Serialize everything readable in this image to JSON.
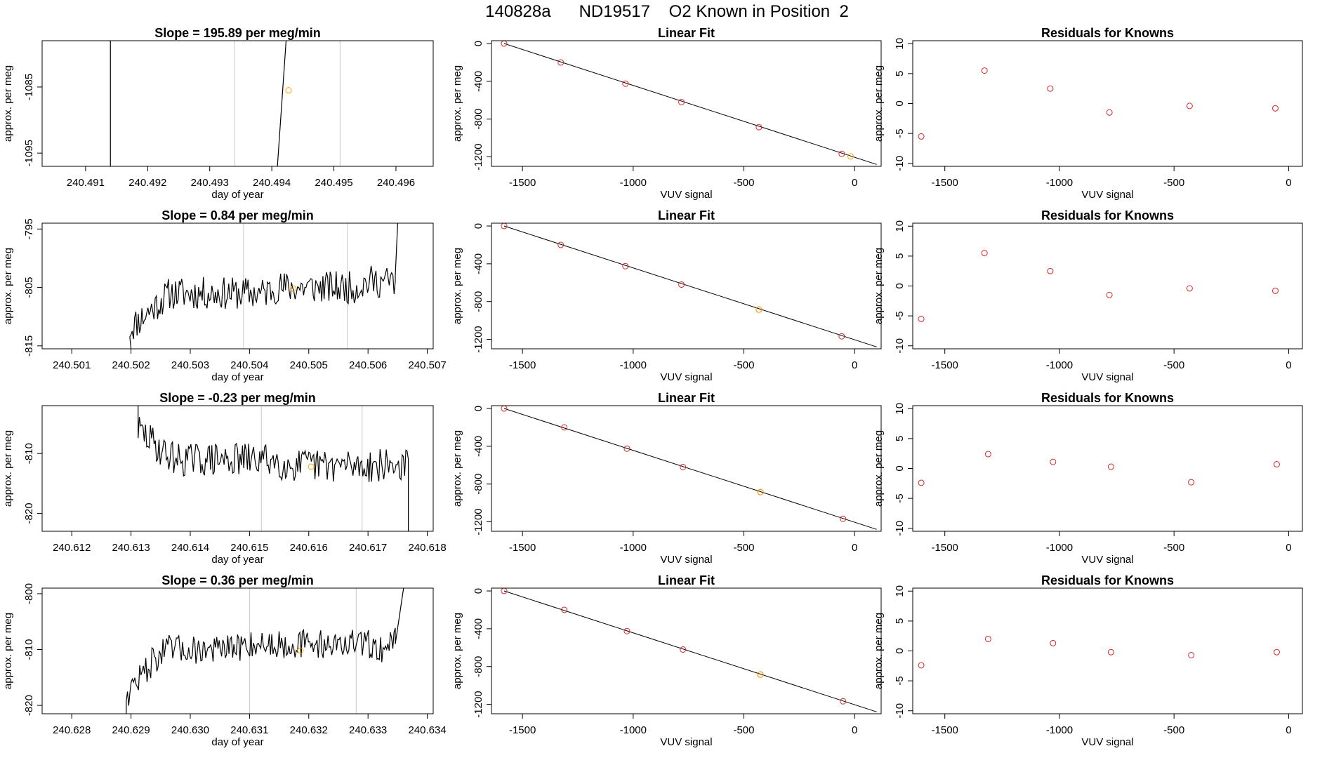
{
  "figure": {
    "title": "140828a      ND19517    O2 Known in Position  2"
  },
  "chart_data": [
    {
      "type": "line",
      "panel": "time-series",
      "row": 1,
      "title": "Slope =  195.89  per meg/min",
      "xlabel": "day of year",
      "ylabel": "approx. per meg",
      "xlim": [
        240.4903,
        240.4966
      ],
      "ylim": [
        -1097,
        -1078
      ],
      "xticks": [
        240.491,
        240.492,
        240.493,
        240.494,
        240.495,
        240.496
      ],
      "xtick_labels": [
        "240.491",
        "240.492",
        "240.493",
        "240.494",
        "240.495",
        "240.496"
      ],
      "yticks": [
        -1095,
        -1085
      ],
      "ytick_labels": [
        "-1095",
        "-1085"
      ],
      "vlines_black": [
        240.4914
      ],
      "vlines_gray": [
        240.4934,
        240.4951
      ],
      "line": [
        [
          240.49409,
          -1097
        ],
        [
          240.49423,
          -1078
        ]
      ],
      "marker": {
        "x": 240.49427,
        "y": -1085.5
      }
    },
    {
      "type": "line",
      "panel": "time-series",
      "row": 2,
      "title": "Slope =  0.84  per meg/min",
      "xlabel": "day of year",
      "ylabel": "approx. per meg",
      "xlim": [
        240.5005,
        240.5071
      ],
      "ylim": [
        -815.5,
        -794
      ],
      "xticks": [
        240.501,
        240.502,
        240.503,
        240.504,
        240.505,
        240.506,
        240.507
      ],
      "xtick_labels": [
        "240.501",
        "240.502",
        "240.503",
        "240.504",
        "240.505",
        "240.506",
        "240.507"
      ],
      "yticks": [
        -815,
        -805,
        -795
      ],
      "ytick_labels": [
        "-815",
        "-805",
        "-795"
      ],
      "vlines_black": [],
      "vlines_gray": [
        240.5039,
        240.50565
      ],
      "series": {
        "x_start": 240.50198,
        "x_end": 240.50646,
        "levels": [
          -812,
          -810,
          -808,
          -806,
          -806,
          -806,
          -806,
          -806,
          -806,
          -806,
          -806,
          -805,
          -805,
          -805,
          -805,
          -805,
          -805,
          -805,
          -804,
          -804,
          -804
        ],
        "amp": 2.8,
        "seed": 11
      },
      "line_ends": [
        [
          240.502,
          -815.5
        ],
        [
          240.50646,
          -803
        ],
        [
          240.5065,
          -794
        ]
      ],
      "marker": {
        "x": 240.50474,
        "y": -805.2
      }
    },
    {
      "type": "line",
      "panel": "time-series",
      "row": 3,
      "title": "Slope =  -0.23  per meg/min",
      "xlabel": "day of year",
      "ylabel": "approx. per meg",
      "xlim": [
        240.6115,
        240.6181
      ],
      "ylim": [
        -823,
        -802
      ],
      "xticks": [
        240.612,
        240.613,
        240.614,
        240.615,
        240.616,
        240.617,
        240.618
      ],
      "xtick_labels": [
        "240.612",
        "240.613",
        "240.614",
        "240.615",
        "240.616",
        "240.617",
        "240.618"
      ],
      "yticks": [
        -820,
        -810
      ],
      "ytick_labels": [
        "-820",
        "-810"
      ],
      "vlines_black": [],
      "vlines_gray": [
        240.6152,
        240.6169
      ],
      "series": {
        "x_start": 240.61312,
        "x_end": 240.61768,
        "levels": [
          -806,
          -808,
          -810,
          -811,
          -811,
          -811,
          -811,
          -811,
          -811,
          -811,
          -811,
          -812,
          -812,
          -812,
          -812,
          -812,
          -812,
          -812,
          -812,
          -812,
          -812
        ],
        "amp": 2.8,
        "seed": 29
      },
      "line_ends": [
        [
          240.61312,
          -802
        ],
        [
          240.61768,
          -823
        ]
      ],
      "marker": {
        "x": 240.61604,
        "y": -812.2
      }
    },
    {
      "type": "line",
      "panel": "time-series",
      "row": 4,
      "title": "Slope =  0.36  per meg/min",
      "xlabel": "day of year",
      "ylabel": "approx. per meg",
      "xlim": [
        240.6275,
        240.6341
      ],
      "ylim": [
        -821.5,
        -799
      ],
      "xticks": [
        240.628,
        240.629,
        240.63,
        240.631,
        240.632,
        240.633,
        240.634
      ],
      "xtick_labels": [
        "240.628",
        "240.629",
        "240.630",
        "240.631",
        "240.632",
        "240.633",
        "240.634"
      ],
      "yticks": [
        -820,
        -810,
        -800
      ],
      "ytick_labels": [
        "-820",
        "-810",
        "-800"
      ],
      "vlines_black": [],
      "vlines_gray": [
        240.631,
        240.6328
      ],
      "series": {
        "x_start": 240.62892,
        "x_end": 240.63346,
        "levels": [
          -818,
          -815,
          -812,
          -810,
          -810,
          -810,
          -810,
          -810,
          -810,
          -809,
          -809,
          -809,
          -809,
          -809,
          -809,
          -809,
          -809,
          -809,
          -809,
          -810,
          -808
        ],
        "amp": 2.6,
        "seed": 47
      },
      "line_ends": [
        [
          240.62892,
          -821.5
        ],
        [
          240.63346,
          -809
        ],
        [
          240.6336,
          -799
        ]
      ],
      "marker": {
        "x": 240.63186,
        "y": -810.2
      }
    },
    {
      "type": "scatter",
      "panel": "linear-fit",
      "row": 1,
      "title": "Linear Fit",
      "xlabel": "VUV signal",
      "ylabel": "approx. per meg",
      "xlim": [
        -1640,
        120
      ],
      "ylim": [
        -1300,
        30
      ],
      "xticks": [
        -1500,
        -1000,
        -500,
        0
      ],
      "xtick_labels": [
        "-1500",
        "-1000",
        "-500",
        "0"
      ],
      "yticks": [
        0,
        -400,
        -800,
        -1200
      ],
      "ytick_labels": [
        "0",
        "-400",
        "-800",
        "-1200"
      ],
      "points": [
        [
          -1583,
          0
        ],
        [
          -1327,
          -200
        ],
        [
          -1035,
          -425
        ],
        [
          -782,
          -620
        ],
        [
          -432,
          -885
        ],
        [
          -58,
          -1168
        ]
      ],
      "highlight": [
        [
          -18,
          -1195
        ]
      ],
      "fit_line": [
        [
          -1583,
          0
        ],
        [
          100,
          -1280
        ]
      ]
    },
    {
      "type": "scatter",
      "panel": "linear-fit",
      "row": 2,
      "title": "Linear Fit",
      "xlabel": "VUV signal",
      "ylabel": "approx. per meg",
      "xlim": [
        -1640,
        120
      ],
      "ylim": [
        -1300,
        30
      ],
      "xticks": [
        -1500,
        -1000,
        -500,
        0
      ],
      "xtick_labels": [
        "-1500",
        "-1000",
        "-500",
        "0"
      ],
      "yticks": [
        0,
        -400,
        -800,
        -1200
      ],
      "ytick_labels": [
        "0",
        "-400",
        "-800",
        "-1200"
      ],
      "points": [
        [
          -1583,
          0
        ],
        [
          -1327,
          -200
        ],
        [
          -1035,
          -425
        ],
        [
          -782,
          -620
        ],
        [
          -432,
          -885
        ],
        [
          -58,
          -1168
        ]
      ],
      "highlight": [
        [
          -432,
          -885
        ]
      ],
      "fit_line": [
        [
          -1583,
          0
        ],
        [
          100,
          -1280
        ]
      ]
    },
    {
      "type": "scatter",
      "panel": "linear-fit",
      "row": 3,
      "title": "Linear Fit",
      "xlabel": "VUV signal",
      "ylabel": "approx. per meg",
      "xlim": [
        -1640,
        120
      ],
      "ylim": [
        -1300,
        30
      ],
      "xticks": [
        -1500,
        -1000,
        -500,
        0
      ],
      "xtick_labels": [
        "-1500",
        "-1000",
        "-500",
        "0"
      ],
      "yticks": [
        0,
        -400,
        -800,
        -1200
      ],
      "ytick_labels": [
        "0",
        "-400",
        "-800",
        "-1200"
      ],
      "points": [
        [
          -1583,
          0
        ],
        [
          -1311,
          -200
        ],
        [
          -1028,
          -425
        ],
        [
          -775,
          -620
        ],
        [
          -425,
          -885
        ],
        [
          -52,
          -1168
        ]
      ],
      "highlight": [
        [
          -425,
          -885
        ]
      ],
      "fit_line": [
        [
          -1583,
          0
        ],
        [
          100,
          -1280
        ]
      ]
    },
    {
      "type": "scatter",
      "panel": "linear-fit",
      "row": 4,
      "title": "Linear Fit",
      "xlabel": "VUV signal",
      "ylabel": "approx. per meg",
      "xlim": [
        -1640,
        120
      ],
      "ylim": [
        -1300,
        30
      ],
      "xticks": [
        -1500,
        -1000,
        -500,
        0
      ],
      "xtick_labels": [
        "-1500",
        "-1000",
        "-500",
        "0"
      ],
      "yticks": [
        0,
        -400,
        -800,
        -1200
      ],
      "ytick_labels": [
        "0",
        "-400",
        "-800",
        "-1200"
      ],
      "points": [
        [
          -1583,
          0
        ],
        [
          -1311,
          -200
        ],
        [
          -1028,
          -425
        ],
        [
          -775,
          -620
        ],
        [
          -425,
          -885
        ],
        [
          -52,
          -1168
        ]
      ],
      "highlight": [
        [
          -425,
          -885
        ]
      ],
      "fit_line": [
        [
          -1583,
          0
        ],
        [
          100,
          -1280
        ]
      ]
    },
    {
      "type": "scatter",
      "panel": "residuals",
      "row": 1,
      "title": "Residuals for Knowns",
      "xlabel": "VUV signal",
      "ylabel": "approx. per meg",
      "xlim": [
        -1640,
        60
      ],
      "ylim": [
        -10.5,
        10.5
      ],
      "xticks": [
        -1500,
        -1000,
        -500,
        0
      ],
      "xtick_labels": [
        "-1500",
        "-1000",
        "-500",
        "0"
      ],
      "yticks": [
        10,
        5,
        0,
        -5,
        -10
      ],
      "ytick_labels": [
        "10",
        "5",
        "0",
        "-5",
        "-10"
      ],
      "points": [
        [
          -1603,
          -5.5
        ],
        [
          -1327,
          5.5
        ],
        [
          -1040,
          2.5
        ],
        [
          -782,
          -1.5
        ],
        [
          -432,
          -0.4
        ],
        [
          -58,
          -0.8
        ]
      ]
    },
    {
      "type": "scatter",
      "panel": "residuals",
      "row": 2,
      "title": "Residuals for Knowns",
      "xlabel": "VUV signal",
      "ylabel": "approx. per meg",
      "xlim": [
        -1640,
        60
      ],
      "ylim": [
        -10.5,
        10.5
      ],
      "xticks": [
        -1500,
        -1000,
        -500,
        0
      ],
      "xtick_labels": [
        "-1500",
        "-1000",
        "-500",
        "0"
      ],
      "yticks": [
        10,
        5,
        0,
        -5,
        -10
      ],
      "ytick_labels": [
        "10",
        "5",
        "0",
        "-5",
        "-10"
      ],
      "points": [
        [
          -1603,
          -5.5
        ],
        [
          -1327,
          5.5
        ],
        [
          -1040,
          2.5
        ],
        [
          -782,
          -1.5
        ],
        [
          -432,
          -0.4
        ],
        [
          -58,
          -0.8
        ]
      ]
    },
    {
      "type": "scatter",
      "panel": "residuals",
      "row": 3,
      "title": "Residuals for Knowns",
      "xlabel": "VUV signal",
      "ylabel": "approx. per meg",
      "xlim": [
        -1640,
        60
      ],
      "ylim": [
        -10.5,
        10.5
      ],
      "xticks": [
        -1500,
        -1000,
        -500,
        0
      ],
      "xtick_labels": [
        "-1500",
        "-1000",
        "-500",
        "0"
      ],
      "yticks": [
        10,
        5,
        0,
        -5,
        -10
      ],
      "ytick_labels": [
        "10",
        "5",
        "0",
        "-5",
        "-10"
      ],
      "points": [
        [
          -1603,
          -2.4
        ],
        [
          -1311,
          2.4
        ],
        [
          -1028,
          1.1
        ],
        [
          -775,
          0.3
        ],
        [
          -425,
          -2.3
        ],
        [
          -52,
          0.7
        ]
      ]
    },
    {
      "type": "scatter",
      "panel": "residuals",
      "row": 4,
      "title": "Residuals for Knowns",
      "xlabel": "VUV signal",
      "ylabel": "approx. per meg",
      "xlim": [
        -1640,
        60
      ],
      "ylim": [
        -10.5,
        10.5
      ],
      "xticks": [
        -1500,
        -1000,
        -500,
        0
      ],
      "xtick_labels": [
        "-1500",
        "-1000",
        "-500",
        "0"
      ],
      "yticks": [
        10,
        5,
        0,
        -5,
        -10
      ],
      "ytick_labels": [
        "10",
        "5",
        "0",
        "-5",
        "-10"
      ],
      "points": [
        [
          -1603,
          -2.4
        ],
        [
          -1311,
          2.0
        ],
        [
          -1028,
          1.3
        ],
        [
          -775,
          -0.2
        ],
        [
          -425,
          -0.7
        ],
        [
          -52,
          -0.2
        ]
      ]
    }
  ],
  "colors": {
    "line": "#000000",
    "point": "#d62728",
    "highlight": "#ffa500",
    "gray_vline": "#c8c8c8",
    "axis": "#000000"
  }
}
